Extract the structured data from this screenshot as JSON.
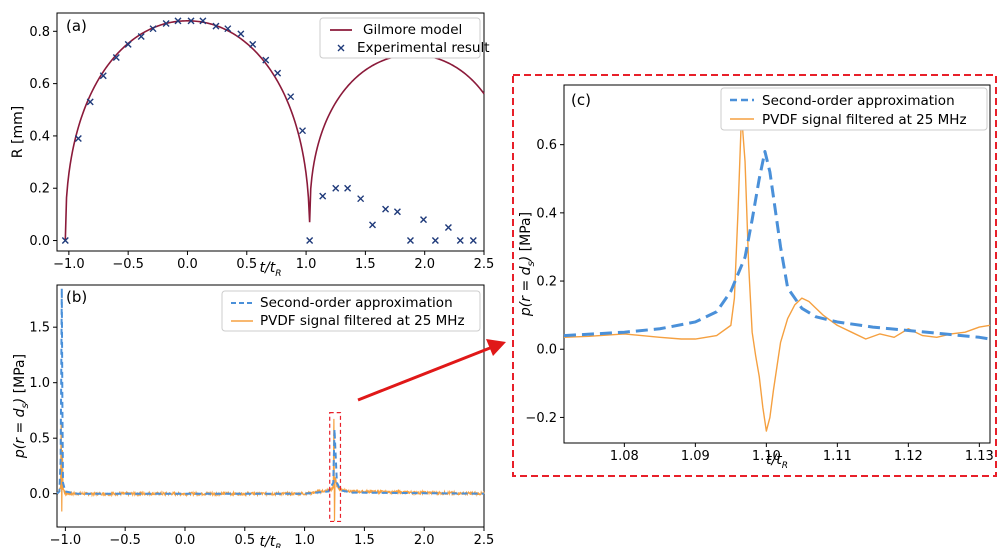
{
  "colors": {
    "gilmore": "#8b1a3a",
    "experimental": "#1f3a7a",
    "approx": "#4a90d9",
    "pvdf": "#f5a040",
    "highlight": "#e8202a",
    "arrow": "#e01818"
  },
  "chart_data": [
    {
      "panel": "(a)",
      "type": "line+scatter",
      "xlabel": "t/t_R",
      "ylabel": "R [mm]",
      "xlim": [
        -1.1,
        2.5
      ],
      "ylim": [
        -0.04,
        0.87
      ],
      "xticks": [
        "−1.0",
        "−0.5",
        "0.0",
        "0.5",
        "1.0",
        "1.5",
        "2.0",
        "2.5"
      ],
      "xtick_values": [
        -1.0,
        -0.5,
        0.0,
        0.5,
        1.0,
        1.5,
        2.0,
        2.5
      ],
      "yticks": [
        "0.0",
        "0.2",
        "0.4",
        "0.6",
        "0.8"
      ],
      "ytick_values": [
        0.0,
        0.2,
        0.4,
        0.6,
        0.8
      ],
      "legend": "top-right",
      "series": [
        {
          "name": "Gilmore model",
          "kind": "line",
          "description": "collapse from R=0.84 mm at t=0 to rebound at t=1.03, then rebound bubble peaking near 0.71 mm at t=1.9"
        },
        {
          "name": "Experimental result",
          "kind": "scatter",
          "x": [
            -1.03,
            -0.92,
            -0.82,
            -0.71,
            -0.6,
            -0.5,
            -0.39,
            -0.29,
            -0.18,
            -0.08,
            0.03,
            0.13,
            0.24,
            0.34,
            0.45,
            0.55,
            0.66,
            0.76,
            0.87,
            0.97,
            1.03,
            1.14,
            1.25,
            1.35,
            1.46,
            1.56,
            1.67,
            1.77,
            1.88,
            1.99,
            2.09,
            2.2,
            2.3,
            2.41
          ],
          "y": [
            0.0,
            0.39,
            0.53,
            0.63,
            0.7,
            0.75,
            0.78,
            0.81,
            0.83,
            0.84,
            0.84,
            0.84,
            0.82,
            0.81,
            0.79,
            0.75,
            0.69,
            0.64,
            0.55,
            0.42,
            0.0,
            0.17,
            0.2,
            0.2,
            0.16,
            0.06,
            0.12,
            0.11,
            0.0,
            0.08,
            0.0,
            0.05,
            0.0,
            0.0
          ]
        }
      ]
    },
    {
      "panel": "(b)",
      "type": "line",
      "xlabel": "t/t_R",
      "ylabel": "p(r = d_s) [MPa]",
      "xlim": [
        -1.07,
        2.5
      ],
      "ylim": [
        -0.3,
        1.88
      ],
      "xticks": [
        "−1.0",
        "−0.5",
        "0.0",
        "0.5",
        "1.0",
        "1.5",
        "2.0",
        "2.5"
      ],
      "xtick_values": [
        -1.0,
        -0.5,
        0.0,
        0.5,
        1.0,
        1.5,
        2.0,
        2.5
      ],
      "yticks": [
        "0.0",
        "0.5",
        "1.0",
        "1.5"
      ],
      "ytick_values": [
        0.0,
        0.5,
        1.0,
        1.5
      ],
      "legend": "top-right",
      "highlight_box": {
        "x": [
          1.21,
          1.3
        ],
        "y": [
          -0.25,
          0.73
        ]
      },
      "series": [
        {
          "name": "Second-order approximation",
          "kind": "dashed-line",
          "x": [
            -1.07,
            -1.05,
            -1.04,
            -1.035,
            -1.03,
            -1.025,
            -1.02,
            -1.0,
            -0.9,
            0.0,
            1.0,
            1.1,
            1.2,
            1.24,
            1.25,
            1.27,
            1.3,
            1.4,
            2.5
          ],
          "y": [
            0.0,
            0.02,
            0.3,
            1.0,
            1.85,
            0.8,
            0.1,
            0.02,
            0.0,
            0.0,
            0.0,
            0.01,
            0.02,
            0.1,
            0.58,
            0.1,
            0.03,
            0.01,
            0.0
          ]
        },
        {
          "name": "PVDF signal filtered at 25 MHz",
          "kind": "line",
          "x": [
            -1.07,
            -1.04,
            -1.035,
            -1.03,
            -1.025,
            -1.02,
            -1.0,
            -0.9,
            0.0,
            1.0,
            1.2,
            1.24,
            1.245,
            1.25,
            1.255,
            1.27,
            1.3,
            1.4,
            2.5
          ],
          "y": [
            0.0,
            0.05,
            0.62,
            -0.15,
            0.4,
            0.05,
            0.0,
            0.0,
            0.0,
            0.0,
            0.03,
            0.05,
            0.68,
            -0.24,
            0.15,
            0.07,
            0.04,
            0.02,
            0.0
          ]
        }
      ]
    },
    {
      "panel": "(c)",
      "type": "line",
      "xlabel": "t/t_R",
      "ylabel": "p(r = d_s) [MPa]",
      "xlim": [
        1.0715,
        1.1315
      ],
      "ylim": [
        -0.275,
        0.775
      ],
      "xticks": [
        "1.08",
        "1.09",
        "1.10",
        "1.11",
        "1.12",
        "1.13"
      ],
      "xtick_values": [
        1.08,
        1.09,
        1.1,
        1.11,
        1.12,
        1.13
      ],
      "yticks": [
        "−0.2",
        "0.0",
        "0.2",
        "0.4",
        "0.6"
      ],
      "ytick_values": [
        -0.2,
        0.0,
        0.2,
        0.4,
        0.6
      ],
      "legend": "top-right",
      "series": [
        {
          "name": "Second-order approximation",
          "kind": "dashed-line",
          "x": [
            1.0715,
            1.08,
            1.085,
            1.09,
            1.093,
            1.095,
            1.097,
            1.098,
            1.099,
            1.0998,
            1.1005,
            1.102,
            1.103,
            1.105,
            1.107,
            1.11,
            1.115,
            1.12,
            1.125,
            1.13,
            1.1315
          ],
          "y": [
            0.04,
            0.05,
            0.06,
            0.08,
            0.11,
            0.17,
            0.27,
            0.38,
            0.5,
            0.58,
            0.52,
            0.3,
            0.18,
            0.12,
            0.095,
            0.08,
            0.065,
            0.055,
            0.045,
            0.035,
            0.03
          ]
        },
        {
          "name": "PVDF signal filtered at 25 MHz",
          "kind": "line",
          "x": [
            1.0715,
            1.075,
            1.08,
            1.085,
            1.088,
            1.09,
            1.093,
            1.095,
            1.0955,
            1.096,
            1.0965,
            1.097,
            1.0975,
            1.098,
            1.0985,
            1.099,
            1.0995,
            1.1,
            1.1005,
            1.101,
            1.1015,
            1.102,
            1.103,
            1.104,
            1.105,
            1.106,
            1.107,
            1.108,
            1.109,
            1.11,
            1.112,
            1.114,
            1.116,
            1.118,
            1.12,
            1.122,
            1.124,
            1.126,
            1.128,
            1.13,
            1.1315
          ],
          "y": [
            0.035,
            0.038,
            0.045,
            0.035,
            0.03,
            0.03,
            0.04,
            0.07,
            0.15,
            0.4,
            0.69,
            0.55,
            0.25,
            0.05,
            -0.02,
            -0.08,
            -0.17,
            -0.24,
            -0.2,
            -0.12,
            -0.05,
            0.02,
            0.09,
            0.13,
            0.15,
            0.14,
            0.12,
            0.1,
            0.085,
            0.07,
            0.05,
            0.03,
            0.045,
            0.035,
            0.06,
            0.04,
            0.035,
            0.045,
            0.05,
            0.065,
            0.07
          ]
        }
      ]
    }
  ]
}
